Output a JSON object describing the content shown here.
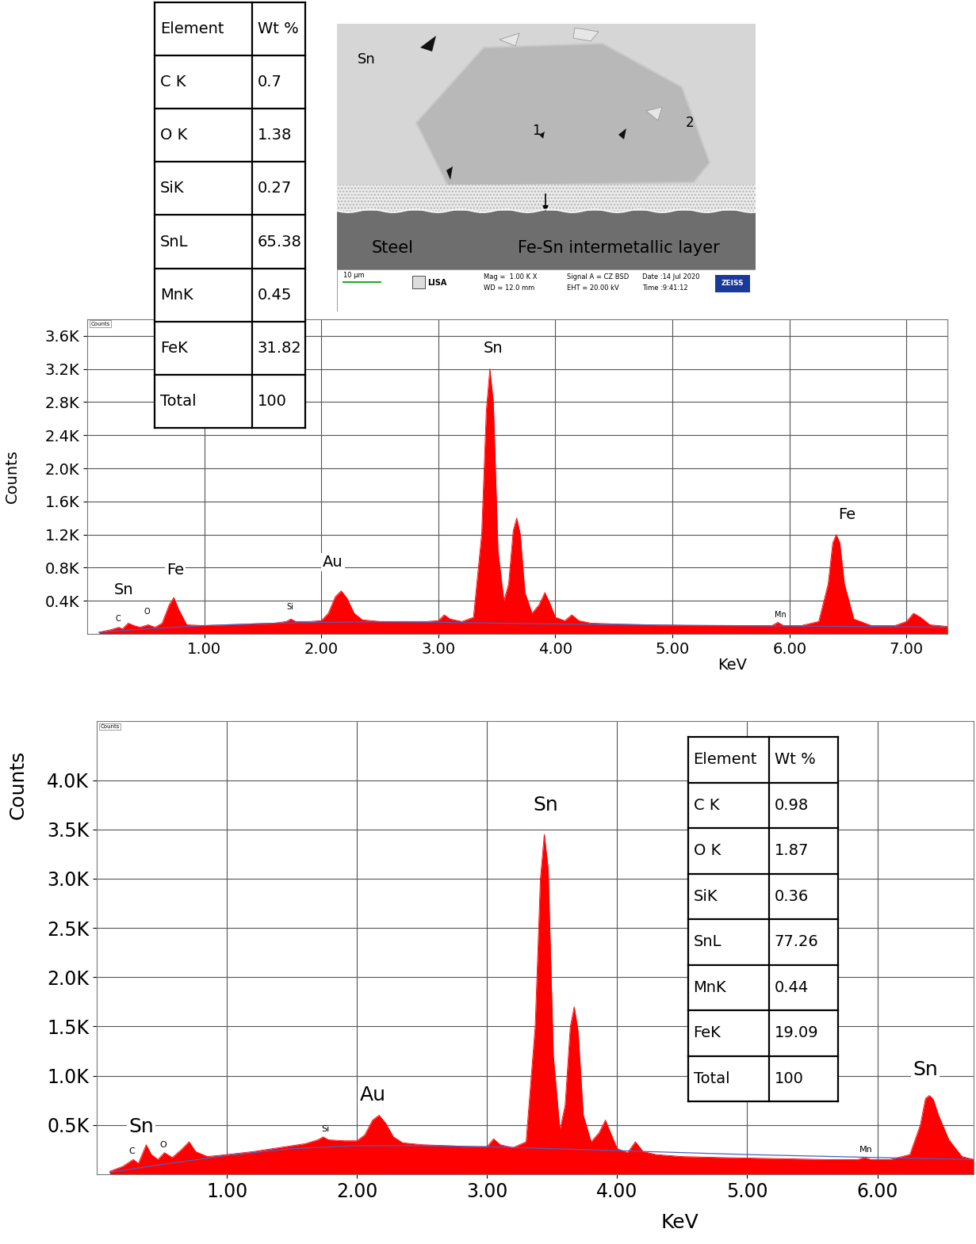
{
  "sem_image": {
    "phase_labels": [
      "Sn",
      "1",
      "2",
      "Steel",
      "Fe-Sn intermetallic layer"
    ],
    "scale_bar": "10 µm",
    "logo": "LISA",
    "info": [
      "Mag =  1.00 K X",
      "WD = 12.0 mm",
      "Signal A = CZ BSD",
      "EHT = 20.00 kV",
      "Date :14 Jul 2020",
      "Time :9:41:12"
    ],
    "brand": "ZEISS"
  },
  "chart_data": [
    {
      "type": "area",
      "x_label": "KeV",
      "y_label": "Counts",
      "frame_label": "Counts",
      "grid": true,
      "xlim": [
        0,
        7.35
      ],
      "ylim": [
        0,
        3800
      ],
      "xticks": [
        {
          "value": 1,
          "label": "1.00"
        },
        {
          "value": 2,
          "label": "2.00"
        },
        {
          "value": 3,
          "label": "3.00"
        },
        {
          "value": 4,
          "label": "4.00"
        },
        {
          "value": 5,
          "label": "5.00"
        },
        {
          "value": 6,
          "label": "6.00"
        },
        {
          "value": 7,
          "label": "7.00"
        }
      ],
      "yticks": [
        {
          "value": 400,
          "label": "0.4K"
        },
        {
          "value": 800,
          "label": "0.8K"
        },
        {
          "value": 1200,
          "label": "1.2K"
        },
        {
          "value": 1600,
          "label": "1.6K"
        },
        {
          "value": 2000,
          "label": "2.0K"
        },
        {
          "value": 2400,
          "label": "2.4K"
        },
        {
          "value": 2800,
          "label": "2.8K"
        },
        {
          "value": 3200,
          "label": "3.2K"
        },
        {
          "value": 3600,
          "label": "3.6K"
        }
      ],
      "series": [
        {
          "type": "area",
          "color": "#ff0000",
          "x": [
            0.1,
            0.2,
            0.27,
            0.3,
            0.35,
            0.4,
            0.45,
            0.52,
            0.58,
            0.64,
            0.7,
            0.74,
            0.78,
            0.85,
            1.0,
            1.2,
            1.4,
            1.6,
            1.7,
            1.74,
            1.78,
            1.9,
            2.0,
            2.06,
            2.12,
            2.17,
            2.22,
            2.28,
            2.35,
            2.5,
            2.7,
            2.9,
            3.0,
            3.05,
            3.1,
            3.2,
            3.3,
            3.37,
            3.41,
            3.44,
            3.47,
            3.51,
            3.56,
            3.6,
            3.64,
            3.67,
            3.7,
            3.74,
            3.8,
            3.86,
            3.91,
            3.95,
            4.0,
            4.08,
            4.14,
            4.2,
            4.3,
            4.5,
            4.8,
            5.2,
            5.6,
            5.85,
            5.9,
            5.95,
            6.1,
            6.25,
            6.33,
            6.37,
            6.4,
            6.43,
            6.47,
            6.55,
            6.7,
            6.9,
            7.0,
            7.06,
            7.12,
            7.2,
            7.35
          ],
          "values": [
            20,
            50,
            80,
            60,
            130,
            100,
            80,
            110,
            80,
            130,
            350,
            440,
            300,
            110,
            100,
            110,
            120,
            130,
            150,
            180,
            150,
            150,
            160,
            250,
            450,
            520,
            430,
            250,
            170,
            150,
            150,
            150,
            160,
            230,
            180,
            150,
            200,
            1200,
            2700,
            3200,
            2800,
            1000,
            400,
            600,
            1250,
            1400,
            1200,
            500,
            250,
            350,
            500,
            380,
            200,
            160,
            230,
            160,
            130,
            120,
            110,
            100,
            100,
            100,
            140,
            100,
            100,
            150,
            600,
            1100,
            1200,
            1100,
            600,
            180,
            100,
            100,
            150,
            250,
            200,
            110,
            90
          ]
        },
        {
          "type": "line",
          "color": "#4a5fc1",
          "x": [
            0.1,
            0.5,
            1.0,
            1.5,
            2.0,
            2.5,
            3.0,
            3.5,
            4.0,
            5.0,
            6.0,
            7.0,
            7.35
          ],
          "values": [
            20,
            60,
            100,
            125,
            140,
            145,
            140,
            130,
            120,
            105,
            95,
            85,
            80
          ]
        }
      ],
      "annotations": [
        {
          "text": "Sn",
          "x": 0.31,
          "y": 530
        },
        {
          "text": "Fe",
          "x": 0.75,
          "y": 770
        },
        {
          "text": "Au",
          "x": 2.1,
          "y": 865
        },
        {
          "text": "Sn",
          "x": 3.47,
          "y": 3450
        },
        {
          "text": "Fe",
          "x": 6.49,
          "y": 1440
        }
      ],
      "element_marks": [
        {
          "text": "C",
          "x": 0.26,
          "y": 180
        },
        {
          "text": "O",
          "x": 0.51,
          "y": 270
        },
        {
          "text": "Si",
          "x": 1.73,
          "y": 330
        },
        {
          "text": "Mn",
          "x": 5.92,
          "y": 230
        }
      ],
      "table": {
        "header": [
          "Element",
          "Wt %"
        ],
        "rows": [
          [
            "C K",
            0.7
          ],
          [
            "O K",
            1.38
          ],
          [
            "SiK",
            0.27
          ],
          [
            "SnL",
            65.38
          ],
          [
            "MnK",
            0.45
          ],
          [
            "FeK",
            31.82
          ],
          [
            "Total",
            100
          ]
        ]
      }
    },
    {
      "type": "area",
      "x_label": "KeV",
      "y_label": "Counts",
      "frame_label": "Counts",
      "grid": true,
      "xlim": [
        0,
        6.74
      ],
      "ylim": [
        0,
        4600
      ],
      "xticks": [
        {
          "value": 1,
          "label": "1.00"
        },
        {
          "value": 2,
          "label": "2.00"
        },
        {
          "value": 3,
          "label": "3.00"
        },
        {
          "value": 4,
          "label": "4.00"
        },
        {
          "value": 5,
          "label": "5.00"
        },
        {
          "value": 6,
          "label": "6.00"
        }
      ],
      "yticks": [
        {
          "value": 500,
          "label": "0.5K"
        },
        {
          "value": 1000,
          "label": "1.0K"
        },
        {
          "value": 1500,
          "label": "1.5K"
        },
        {
          "value": 2000,
          "label": "2.0K"
        },
        {
          "value": 2500,
          "label": "2.5K"
        },
        {
          "value": 3000,
          "label": "3.0K"
        },
        {
          "value": 3500,
          "label": "3.5K"
        },
        {
          "value": 4000,
          "label": "4.0K"
        }
      ],
      "series": [
        {
          "type": "area",
          "color": "#ff0000",
          "x": [
            0.1,
            0.2,
            0.28,
            0.32,
            0.38,
            0.42,
            0.47,
            0.52,
            0.58,
            0.65,
            0.71,
            0.76,
            0.85,
            1.0,
            1.2,
            1.4,
            1.6,
            1.7,
            1.74,
            1.78,
            1.9,
            2.0,
            2.06,
            2.12,
            2.17,
            2.22,
            2.28,
            2.35,
            2.5,
            2.7,
            2.9,
            3.0,
            3.05,
            3.1,
            3.2,
            3.3,
            3.37,
            3.41,
            3.44,
            3.47,
            3.51,
            3.56,
            3.6,
            3.64,
            3.67,
            3.7,
            3.74,
            3.8,
            3.86,
            3.91,
            3.95,
            4.0,
            4.08,
            4.14,
            4.2,
            4.3,
            4.5,
            4.8,
            5.2,
            5.6,
            5.85,
            5.9,
            5.95,
            6.1,
            6.25,
            6.33,
            6.37,
            6.4,
            6.43,
            6.47,
            6.55,
            6.65,
            6.74
          ],
          "values": [
            30,
            80,
            150,
            110,
            300,
            200,
            150,
            220,
            170,
            250,
            330,
            230,
            180,
            200,
            230,
            270,
            310,
            350,
            380,
            350,
            340,
            340,
            400,
            550,
            600,
            520,
            380,
            320,
            300,
            290,
            280,
            280,
            360,
            300,
            270,
            330,
            1500,
            3000,
            3450,
            3100,
            1200,
            450,
            700,
            1500,
            1700,
            1450,
            600,
            330,
            420,
            550,
            420,
            260,
            220,
            330,
            230,
            200,
            180,
            170,
            160,
            150,
            150,
            170,
            150,
            150,
            200,
            500,
            770,
            800,
            760,
            600,
            350,
            180,
            150
          ]
        },
        {
          "type": "line",
          "color": "#4a5fc1",
          "x": [
            0.1,
            0.5,
            1.0,
            1.5,
            2.0,
            2.5,
            3.0,
            3.5,
            4.0,
            5.0,
            6.0,
            6.74
          ],
          "values": [
            20,
            100,
            190,
            260,
            290,
            290,
            280,
            260,
            240,
            200,
            170,
            150
          ]
        }
      ],
      "annotations": [
        {
          "text": "Sn",
          "x": 0.34,
          "y": 484
        },
        {
          "text": "Au",
          "x": 2.12,
          "y": 806
        },
        {
          "text": "Sn",
          "x": 3.45,
          "y": 3750
        },
        {
          "text": "Sn",
          "x": 6.37,
          "y": 1065
        }
      ],
      "element_marks": [
        {
          "text": "C",
          "x": 0.27,
          "y": 230
        },
        {
          "text": "O",
          "x": 0.51,
          "y": 300
        },
        {
          "text": "Si",
          "x": 1.76,
          "y": 460
        },
        {
          "text": "Mn",
          "x": 5.91,
          "y": 250
        }
      ],
      "table": {
        "header": [
          "Element",
          "Wt %"
        ],
        "rows": [
          [
            "C K",
            0.98
          ],
          [
            "O K",
            1.87
          ],
          [
            "SiK",
            0.36
          ],
          [
            "SnL",
            77.26
          ],
          [
            "MnK",
            0.44
          ],
          [
            "FeK",
            19.09
          ],
          [
            "Total",
            100
          ]
        ]
      }
    }
  ]
}
